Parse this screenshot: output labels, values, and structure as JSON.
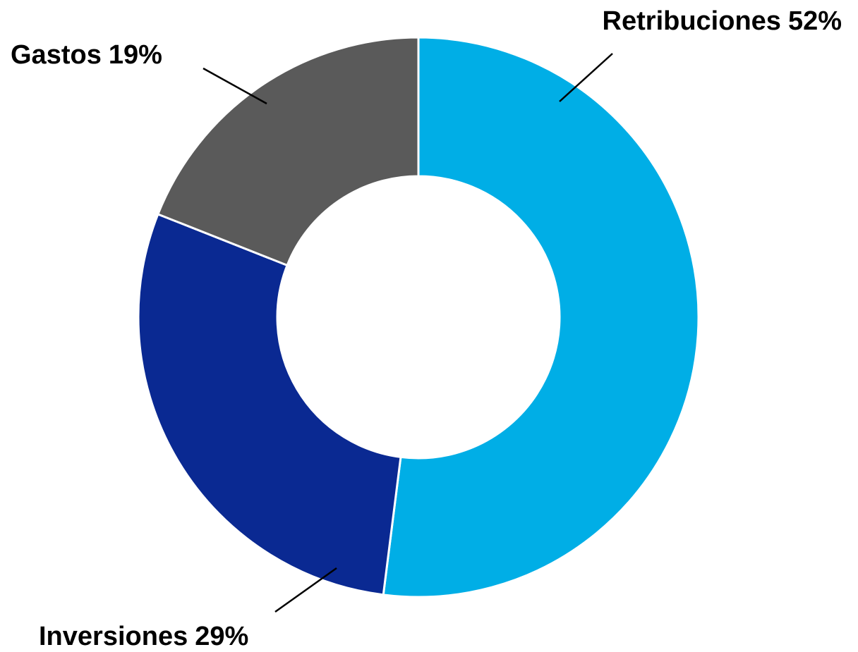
{
  "chart_data": {
    "type": "donut",
    "categories": [
      "Retribuciones",
      "Inversiones",
      "Gastos"
    ],
    "values": [
      52,
      29,
      19
    ],
    "value_labels": [
      "52%",
      "29%",
      "19%"
    ],
    "colors": [
      "#00aee6",
      "#0a2992",
      "#5a5a5a"
    ]
  }
}
